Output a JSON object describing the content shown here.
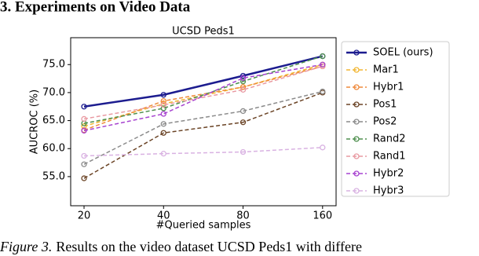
{
  "heading": "3. Experiments on Video Data",
  "caption": {
    "label": "Figure 3.",
    "text": "Results on the video dataset UCSD Peds1 with differe"
  },
  "chart_data": {
    "type": "line",
    "title": "UCSD Peds1",
    "x_label": "#Queried samples",
    "y_label": "AUCROC (%)",
    "x": [
      20,
      40,
      80,
      160
    ],
    "xscale": "log2",
    "xlim": [
      17.8,
      180
    ],
    "xticks": [
      20,
      40,
      80,
      160
    ],
    "ylim": [
      49.8,
      79.8
    ],
    "yticks": [
      {
        "value": 55,
        "label": "55.0"
      },
      {
        "value": 60,
        "label": "60.0"
      },
      {
        "value": 65,
        "label": "65.0"
      },
      {
        "value": 70,
        "label": "70.0"
      },
      {
        "value": 75,
        "label": "75.0"
      }
    ],
    "grid": false,
    "legend": "outside-right",
    "series": [
      {
        "name": "SOEL (ours)",
        "color": "#1c1c8f",
        "linestyle": "solid",
        "values": [
          67.5,
          69.6,
          73.0,
          76.5
        ]
      },
      {
        "name": "Mar1",
        "color": "#f2b632",
        "linestyle": "dashed",
        "values": [
          64.0,
          68.0,
          71.0,
          75.0
        ]
      },
      {
        "name": "Hybr1",
        "color": "#ef8a3c",
        "linestyle": "dashed",
        "values": [
          63.3,
          68.5,
          71.0,
          74.7
        ]
      },
      {
        "name": "Pos1",
        "color": "#6b4426",
        "linestyle": "dashed",
        "values": [
          54.7,
          62.8,
          64.7,
          70.0
        ]
      },
      {
        "name": "Pos2",
        "color": "#8a8a8a",
        "linestyle": "dashed",
        "values": [
          57.2,
          64.4,
          66.7,
          70.2
        ]
      },
      {
        "name": "Rand2",
        "color": "#4e8f4e",
        "linestyle": "dashed",
        "values": [
          64.5,
          67.2,
          72.0,
          76.5
        ]
      },
      {
        "name": "Rand1",
        "color": "#e99aa2",
        "linestyle": "dashed",
        "values": [
          65.3,
          67.8,
          70.5,
          74.7
        ]
      },
      {
        "name": "Hybr2",
        "color": "#a743d0",
        "linestyle": "dashed",
        "values": [
          63.2,
          66.2,
          72.6,
          75.0
        ]
      },
      {
        "name": "Hybr3",
        "color": "#d9b2e2",
        "linestyle": "dashed",
        "values": [
          58.7,
          59.1,
          59.4,
          60.2
        ]
      }
    ]
  }
}
